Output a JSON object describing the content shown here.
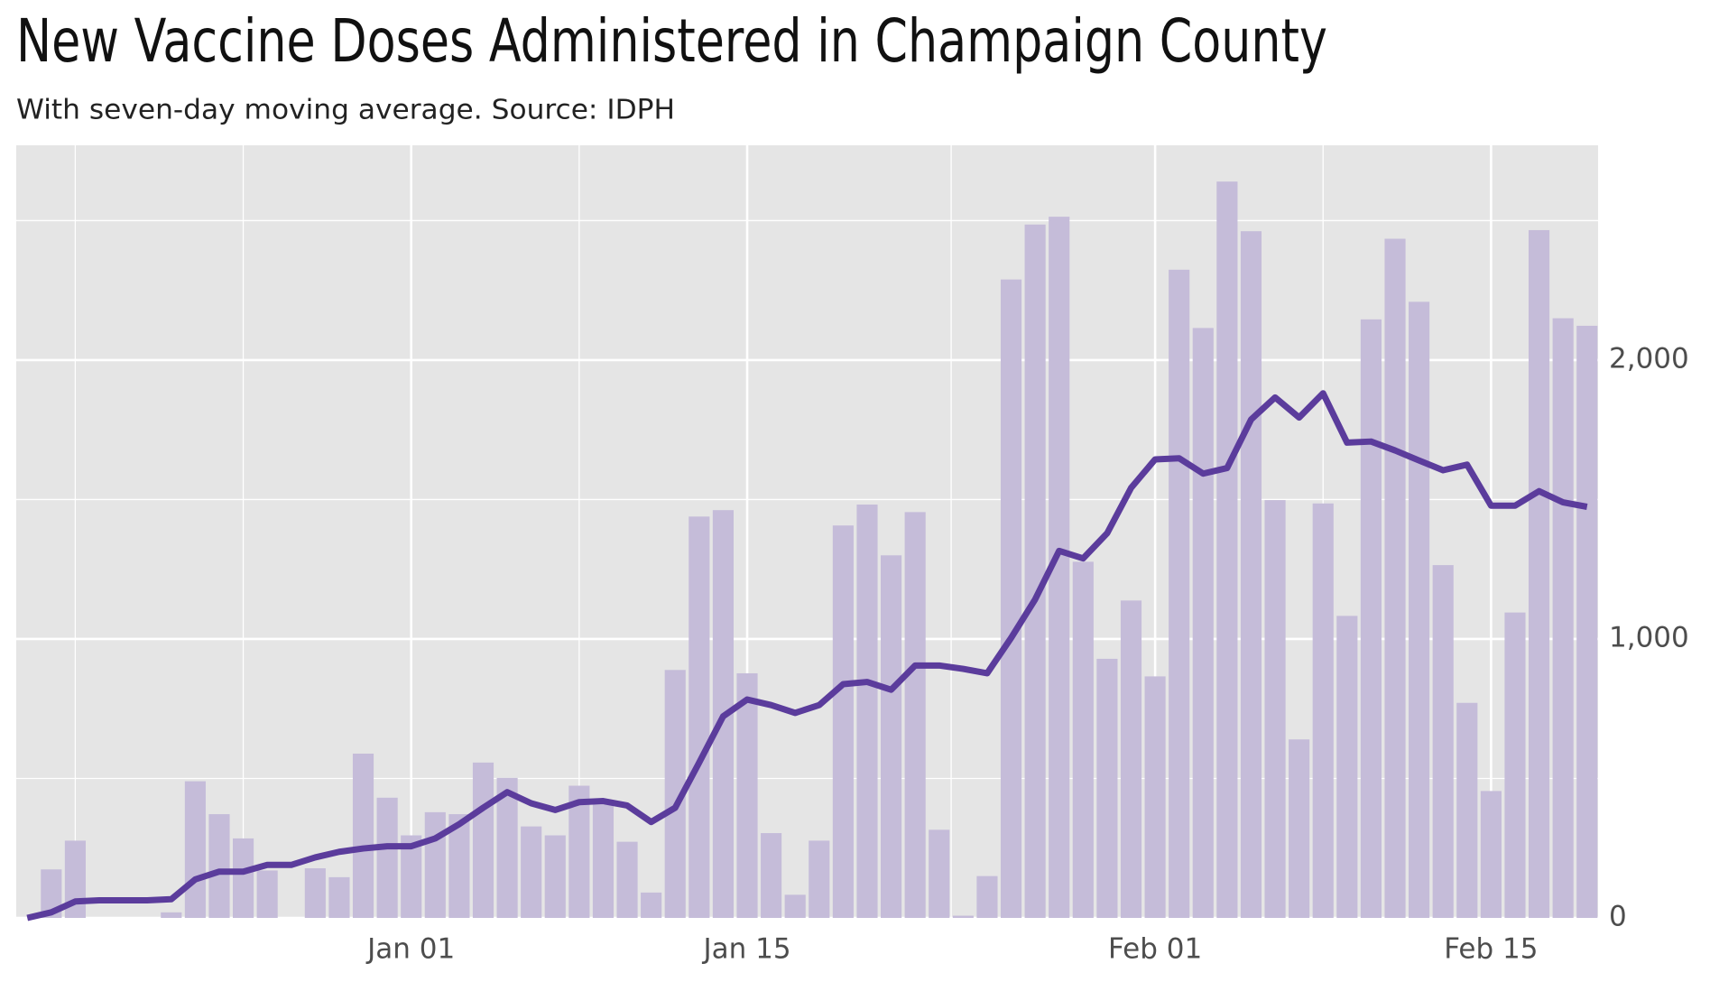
{
  "chart_data": {
    "type": "bar",
    "title": "New Vaccine Doses Administered in Champaign County",
    "subtitle": "With seven-day moving average. Source: IDPH",
    "x": [
      "Dec 16",
      "Dec 17",
      "Dec 18",
      "Dec 19",
      "Dec 20",
      "Dec 21",
      "Dec 22",
      "Dec 23",
      "Dec 24",
      "Dec 25",
      "Dec 26",
      "Dec 27",
      "Dec 28",
      "Dec 29",
      "Dec 30",
      "Dec 31",
      "Jan 01",
      "Jan 02",
      "Jan 03",
      "Jan 04",
      "Jan 05",
      "Jan 06",
      "Jan 07",
      "Jan 08",
      "Jan 09",
      "Jan 10",
      "Jan 11",
      "Jan 12",
      "Jan 13",
      "Jan 14",
      "Jan 15",
      "Jan 16",
      "Jan 17",
      "Jan 18",
      "Jan 19",
      "Jan 20",
      "Jan 21",
      "Jan 22",
      "Jan 23",
      "Jan 24",
      "Jan 25",
      "Jan 26",
      "Jan 27",
      "Jan 28",
      "Jan 29",
      "Jan 30",
      "Jan 31",
      "Feb 01",
      "Feb 02",
      "Feb 03",
      "Feb 04",
      "Feb 05",
      "Feb 06",
      "Feb 07",
      "Feb 08",
      "Feb 09",
      "Feb 10",
      "Feb 11",
      "Feb 12",
      "Feb 13",
      "Feb 14",
      "Feb 15",
      "Feb 16",
      "Feb 17",
      "Feb 18",
      "Feb 19"
    ],
    "series": [
      {
        "type": "bar",
        "color": "#c5bcd9",
        "values": [
          0,
          174,
          277,
          0,
          0,
          0,
          20,
          490,
          372,
          285,
          170,
          0,
          178,
          146,
          589,
          431,
          296,
          379,
          372,
          557,
          502,
          328,
          296,
          474,
          407,
          273,
          91,
          889,
          1439,
          1462,
          877,
          304,
          83,
          277,
          1407,
          1482,
          1300,
          1455,
          316,
          8,
          150,
          2289,
          2486,
          2514,
          1277,
          929,
          1138,
          866,
          2324,
          2115,
          2640,
          2462,
          1498,
          640,
          1486,
          1083,
          2146,
          2435,
          2209,
          1265,
          771,
          455,
          1095,
          2466,
          2150,
          2123
        ]
      },
      {
        "type": "line",
        "color": "#5b3c9c",
        "values": [
          0,
          20,
          59,
          63,
          63,
          63,
          67,
          138,
          166,
          166,
          190,
          190,
          217,
          237,
          249,
          257,
          257,
          285,
          336,
          395,
          451,
          411,
          387,
          415,
          419,
          403,
          344,
          395,
          557,
          723,
          783,
          763,
          735,
          763,
          838,
          846,
          818,
          905,
          905,
          893,
          877,
          1004,
          1142,
          1316,
          1289,
          1379,
          1542,
          1644,
          1648,
          1593,
          1613,
          1787,
          1866,
          1794,
          1881,
          1704,
          1708,
          1676,
          1640,
          1605,
          1625,
          1478,
          1478,
          1530,
          1490,
          1474
        ]
      }
    ],
    "xticks": [
      "Jan 01",
      "Jan 15",
      "Feb 01",
      "Feb 15"
    ],
    "ylim": [
      0,
      2770
    ],
    "yticks": [
      0,
      {
        "value": 1000,
        "label": "1,000"
      },
      {
        "value": 2000,
        "label": "2,000"
      }
    ],
    "grid": true
  }
}
